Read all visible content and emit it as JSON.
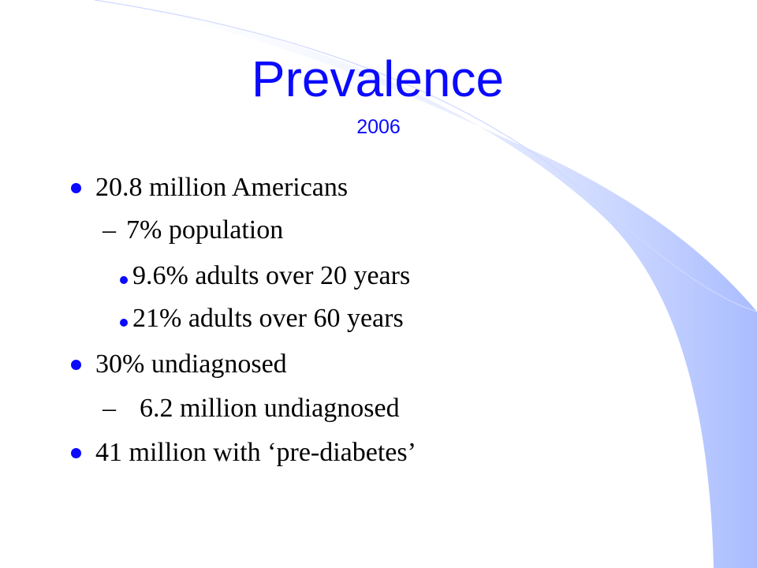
{
  "slide": {
    "title": "Prevalence",
    "subtitle": "2006",
    "bullets": [
      {
        "level": 1,
        "text": "20.8 million Americans"
      },
      {
        "level": 2,
        "dash": "–",
        "text": "7% population"
      },
      {
        "level": 3,
        "text": "9.6% adults over 20 years"
      },
      {
        "level": 3,
        "text": "21% adults over 60 years"
      },
      {
        "level": 1,
        "text": "30% undiagnosed"
      },
      {
        "level": 2,
        "dash": "–",
        "text": "  6.2 million undiagnosed"
      },
      {
        "level": 1,
        "text": "41 million with ‘pre-diabetes’"
      }
    ]
  },
  "colors": {
    "title": "#0a0aff",
    "bullet_marker": "#0a0aff",
    "body_text": "#000000",
    "swoosh": "#a9bcff"
  }
}
